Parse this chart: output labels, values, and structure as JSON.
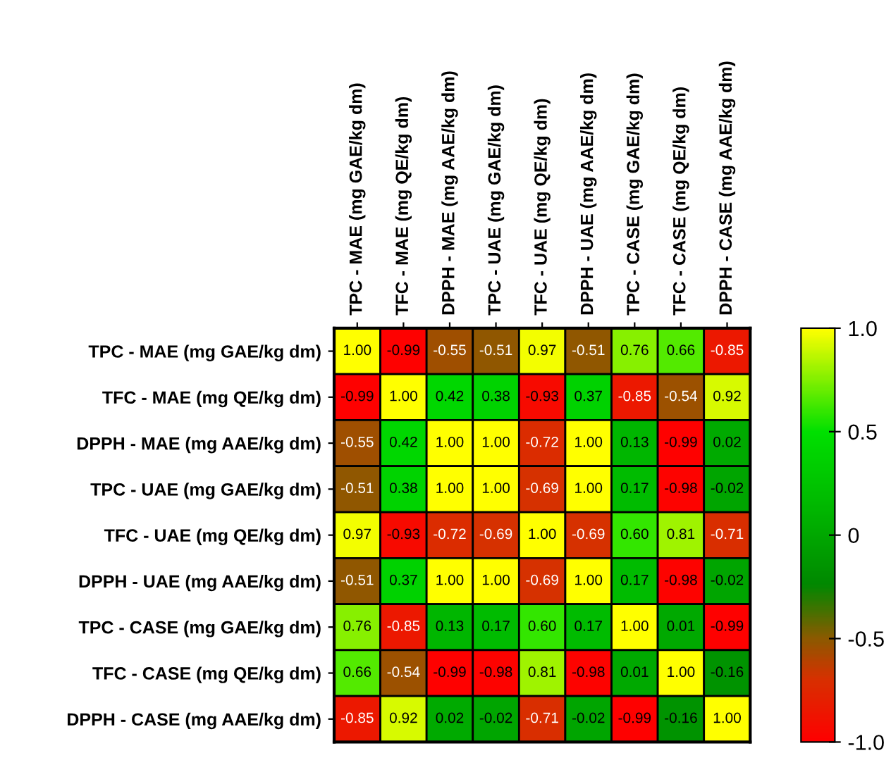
{
  "chart_data": {
    "type": "heatmap",
    "categories": [
      "TPC - MAE (mg GAE/kg dm)",
      "TFC - MAE (mg QE/kg dm)",
      "DPPH - MAE (mg AAE/kg dm)",
      "TPC - UAE (mg GAE/kg dm)",
      "TFC - UAE (mg QE/kg dm)",
      "DPPH - UAE (mg AAE/kg dm)",
      "TPC - CASE (mg GAE/kg dm)",
      "TFC - CASE (mg QE/kg dm)",
      "DPPH - CASE (mg AAE/kg dm)"
    ],
    "y_categories": [
      "TPC - MAE (mg GAE/kg dm)",
      "TFC - MAE (mg QE/kg dm)",
      "DPPH - MAE (mg AAE/kg dm)",
      "TPC - UAE (mg GAE/kg dm)",
      "TFC - UAE (mg QE/kg dm)",
      "DPPH - UAE (mg AAE/kg dm)",
      "TPC - CASE (mg GAE/kg dm)",
      "TFC - CASE (mg QE/kg dm)",
      "DPPH - CASE (mg AAE/kg dm)"
    ],
    "cells": [
      [
        1.0,
        -0.99,
        -0.55,
        -0.51,
        0.97,
        -0.51,
        0.76,
        0.66,
        -0.85
      ],
      [
        -0.99,
        1.0,
        0.42,
        0.38,
        -0.93,
        0.37,
        -0.85,
        -0.54,
        0.92
      ],
      [
        -0.55,
        0.42,
        1.0,
        1.0,
        -0.72,
        1.0,
        0.13,
        -0.99,
        0.02
      ],
      [
        -0.51,
        0.38,
        1.0,
        1.0,
        -0.69,
        1.0,
        0.17,
        -0.98,
        -0.02
      ],
      [
        0.97,
        -0.93,
        -0.72,
        -0.69,
        1.0,
        -0.69,
        0.6,
        0.81,
        -0.71
      ],
      [
        -0.51,
        0.37,
        1.0,
        1.0,
        -0.69,
        1.0,
        0.17,
        -0.98,
        -0.02
      ],
      [
        0.76,
        -0.85,
        0.13,
        0.17,
        0.6,
        0.17,
        1.0,
        0.01,
        -0.99
      ],
      [
        0.66,
        -0.54,
        -0.99,
        -0.98,
        0.81,
        -0.98,
        0.01,
        1.0,
        -0.16
      ],
      [
        -0.85,
        0.92,
        0.02,
        -0.02,
        -0.71,
        -0.02,
        -0.99,
        -0.16,
        1.0
      ]
    ],
    "cell_labels": [
      [
        "1.00",
        "-0.99",
        "-0.55",
        "-0.51",
        "0.97",
        "-0.51",
        "0.76",
        "0.66",
        "-0.85"
      ],
      [
        "-0.99",
        "1.00",
        "0.42",
        "0.38",
        "-0.93",
        "0.37",
        "-0.85",
        "-0.54",
        "0.92"
      ],
      [
        "-0.55",
        "0.42",
        "1.00",
        "1.00",
        "-0.72",
        "1.00",
        "0.13",
        "-0.99",
        "0.02"
      ],
      [
        "-0.51",
        "0.38",
        "1.00",
        "1.00",
        "-0.69",
        "1.00",
        "0.17",
        "-0.98",
        "-0.02"
      ],
      [
        "0.97",
        "-0.93",
        "-0.72",
        "-0.69",
        "1.00",
        "-0.69",
        "0.60",
        "0.81",
        "-0.71"
      ],
      [
        "-0.51",
        "0.37",
        "1.00",
        "1.00",
        "-0.69",
        "1.00",
        "0.17",
        "-0.98",
        "-0.02"
      ],
      [
        "0.76",
        "-0.85",
        "0.13",
        "0.17",
        "0.60",
        "0.17",
        "1.00",
        "0.01",
        "-0.99"
      ],
      [
        "0.66",
        "-0.54",
        "-0.99",
        "-0.98",
        "0.81",
        "-0.98",
        "0.01",
        "1.00",
        "-0.16"
      ],
      [
        "-0.85",
        "0.92",
        "0.02",
        "-0.02",
        "-0.71",
        "-0.02",
        "-0.99",
        "-0.16",
        "1.00"
      ]
    ],
    "clim": [
      -1,
      1
    ],
    "cticks": [
      {
        "value": -1,
        "label": "-1.0"
      },
      {
        "value": -0.5,
        "label": "-0.5"
      },
      0,
      {
        "value": 0.5,
        "label": "0.5"
      },
      {
        "value": 1,
        "label": "1.0"
      }
    ]
  }
}
